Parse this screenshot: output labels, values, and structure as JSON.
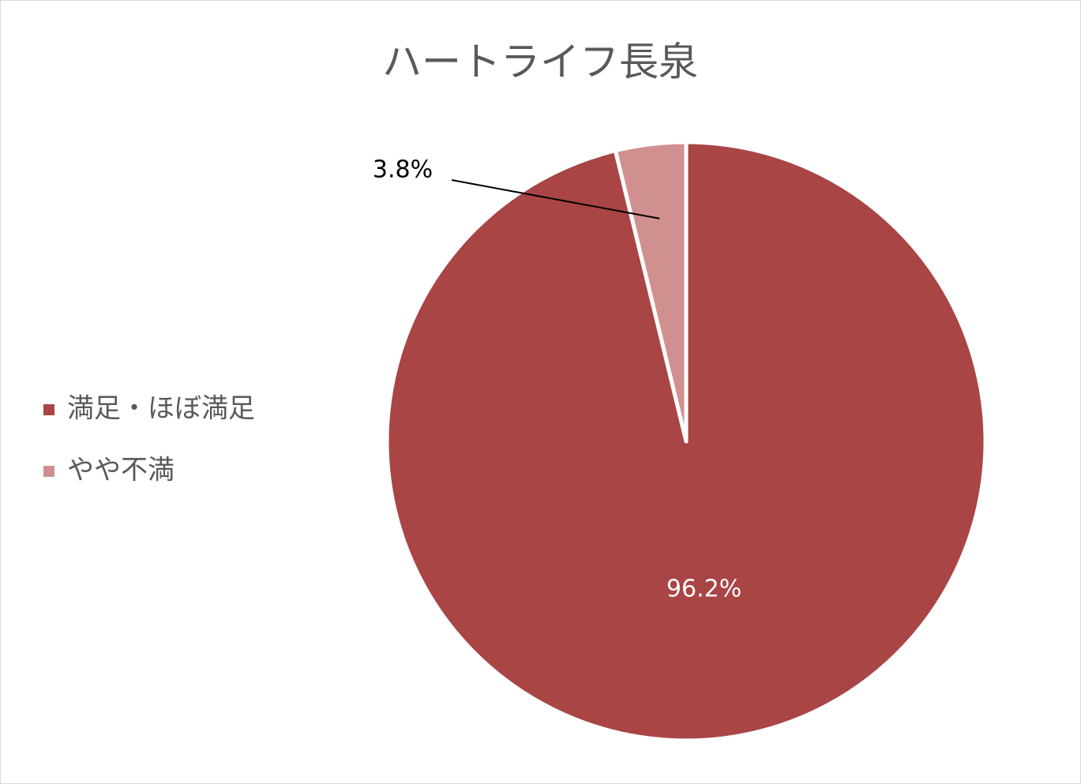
{
  "chart_data": {
    "type": "pie",
    "title": "ハートライフ長泉",
    "categories": [
      "満足・ほぼ満足",
      "やや不満"
    ],
    "values": [
      96.2,
      3.8
    ],
    "value_labels": [
      "96.2%",
      "3.8%"
    ],
    "colors": [
      "#a94545",
      "#d19090"
    ],
    "legend": "left"
  }
}
